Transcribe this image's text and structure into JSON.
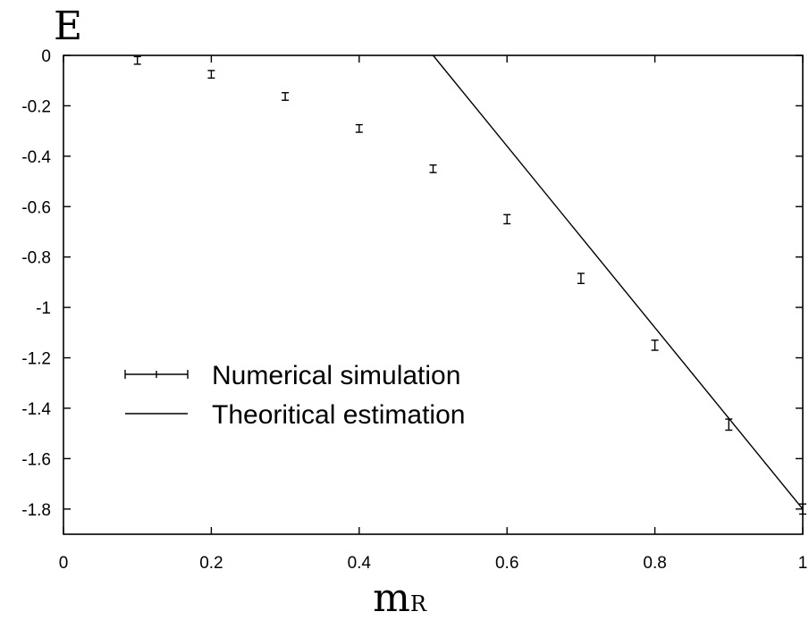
{
  "chart_data": {
    "type": "scatter",
    "xlabel": "m",
    "xlabel_subscript": "R",
    "ylabel": "E",
    "xlim": [
      0,
      1
    ],
    "ylim": [
      -1.9,
      0
    ],
    "x_ticks": [
      0,
      0.2,
      0.4,
      0.6,
      0.8,
      1
    ],
    "x_tick_labels": [
      "0",
      "0.2",
      "0.4",
      "0.6",
      "0.8",
      "1"
    ],
    "y_ticks": [
      0,
      -0.2,
      -0.4,
      -0.6,
      -0.8,
      -1,
      -1.2,
      -1.4,
      -1.6,
      -1.8
    ],
    "y_tick_labels": [
      "0",
      "-0.2",
      "-0.4",
      "-0.6",
      "-0.8",
      "-1",
      "-1.2",
      "-1.4",
      "-1.6",
      "-1.8"
    ],
    "grid": false,
    "legend_position": "bottom-left",
    "series": [
      {
        "name": "Numerical simulation",
        "kind": "errorbar",
        "x": [
          0.1,
          0.2,
          0.3,
          0.4,
          0.5,
          0.6,
          0.7,
          0.8,
          0.9,
          1.0
        ],
        "y": [
          -0.02,
          -0.075,
          -0.163,
          -0.29,
          -0.45,
          -0.65,
          -0.885,
          -1.15,
          -1.465,
          -1.8
        ],
        "err": [
          0.015,
          0.015,
          0.015,
          0.015,
          0.015,
          0.018,
          0.02,
          0.02,
          0.022,
          0.02
        ]
      },
      {
        "name": "Theoritical estimation",
        "kind": "line",
        "x": [
          0.5,
          1.0
        ],
        "y": [
          0,
          -1.8
        ]
      }
    ],
    "colors": {
      "ink": "#000000",
      "background": "#ffffff"
    }
  }
}
